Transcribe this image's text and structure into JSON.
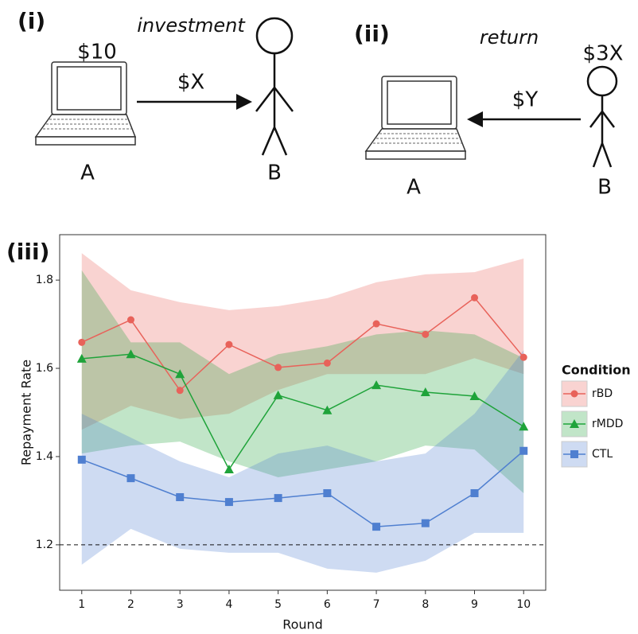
{
  "diagram": {
    "panel1": {
      "label": "(i)",
      "action": "investment",
      "endowment": "$10",
      "transfer": "$X",
      "sender": "A",
      "receiver": "B"
    },
    "panel2": {
      "label": "(ii)",
      "action": "return",
      "endowment": "$3X",
      "transfer": "$Y",
      "receiver": "A",
      "sender": "B"
    }
  },
  "chart_data": {
    "type": "line",
    "panel_label": "(iii)",
    "x_label": "Round",
    "y_label": "Repayment Rate",
    "x": [
      1,
      2,
      3,
      4,
      5,
      6,
      7,
      8,
      9,
      10
    ],
    "xlim": [
      0.55,
      10.45
    ],
    "xticks": [
      1,
      2,
      3,
      4,
      5,
      6,
      7,
      8,
      9,
      10
    ],
    "ylim": [
      1.097,
      1.903
    ],
    "yticks": [
      1.2,
      1.4,
      1.6,
      1.8
    ],
    "reference_line": 1.2,
    "legend_title": "Condition",
    "legend_position": "right",
    "series": [
      {
        "name": "rBD",
        "color": "#e8625a",
        "marker": "circle",
        "values": [
          1.659,
          1.71,
          1.55,
          1.654,
          1.602,
          1.612,
          1.701,
          1.677,
          1.76,
          1.625
        ],
        "upper": [
          1.861,
          1.777,
          1.75,
          1.732,
          1.741,
          1.759,
          1.795,
          1.813,
          1.818,
          1.849
        ],
        "lower": [
          1.461,
          1.515,
          1.485,
          1.497,
          1.551,
          1.587,
          1.587,
          1.587,
          1.623,
          1.587
        ]
      },
      {
        "name": "rMDD",
        "color": "#1fa33a",
        "marker": "triangle",
        "values": [
          1.622,
          1.632,
          1.587,
          1.371,
          1.539,
          1.505,
          1.562,
          1.546,
          1.537,
          1.468
        ],
        "upper": [
          1.822,
          1.659,
          1.659,
          1.587,
          1.632,
          1.65,
          1.677,
          1.686,
          1.677,
          1.623
        ],
        "lower": [
          1.407,
          1.425,
          1.434,
          1.389,
          1.353,
          1.371,
          1.389,
          1.425,
          1.416,
          1.317
        ]
      },
      {
        "name": "CTL",
        "color": "#4f7fd0",
        "marker": "square",
        "values": [
          1.393,
          1.351,
          1.308,
          1.297,
          1.306,
          1.317,
          1.241,
          1.249,
          1.317,
          1.413
        ],
        "upper": [
          1.497,
          1.443,
          1.389,
          1.353,
          1.407,
          1.425,
          1.389,
          1.407,
          1.497,
          1.641
        ],
        "lower": [
          1.155,
          1.236,
          1.191,
          1.182,
          1.182,
          1.146,
          1.137,
          1.164,
          1.227,
          1.227
        ]
      }
    ]
  }
}
